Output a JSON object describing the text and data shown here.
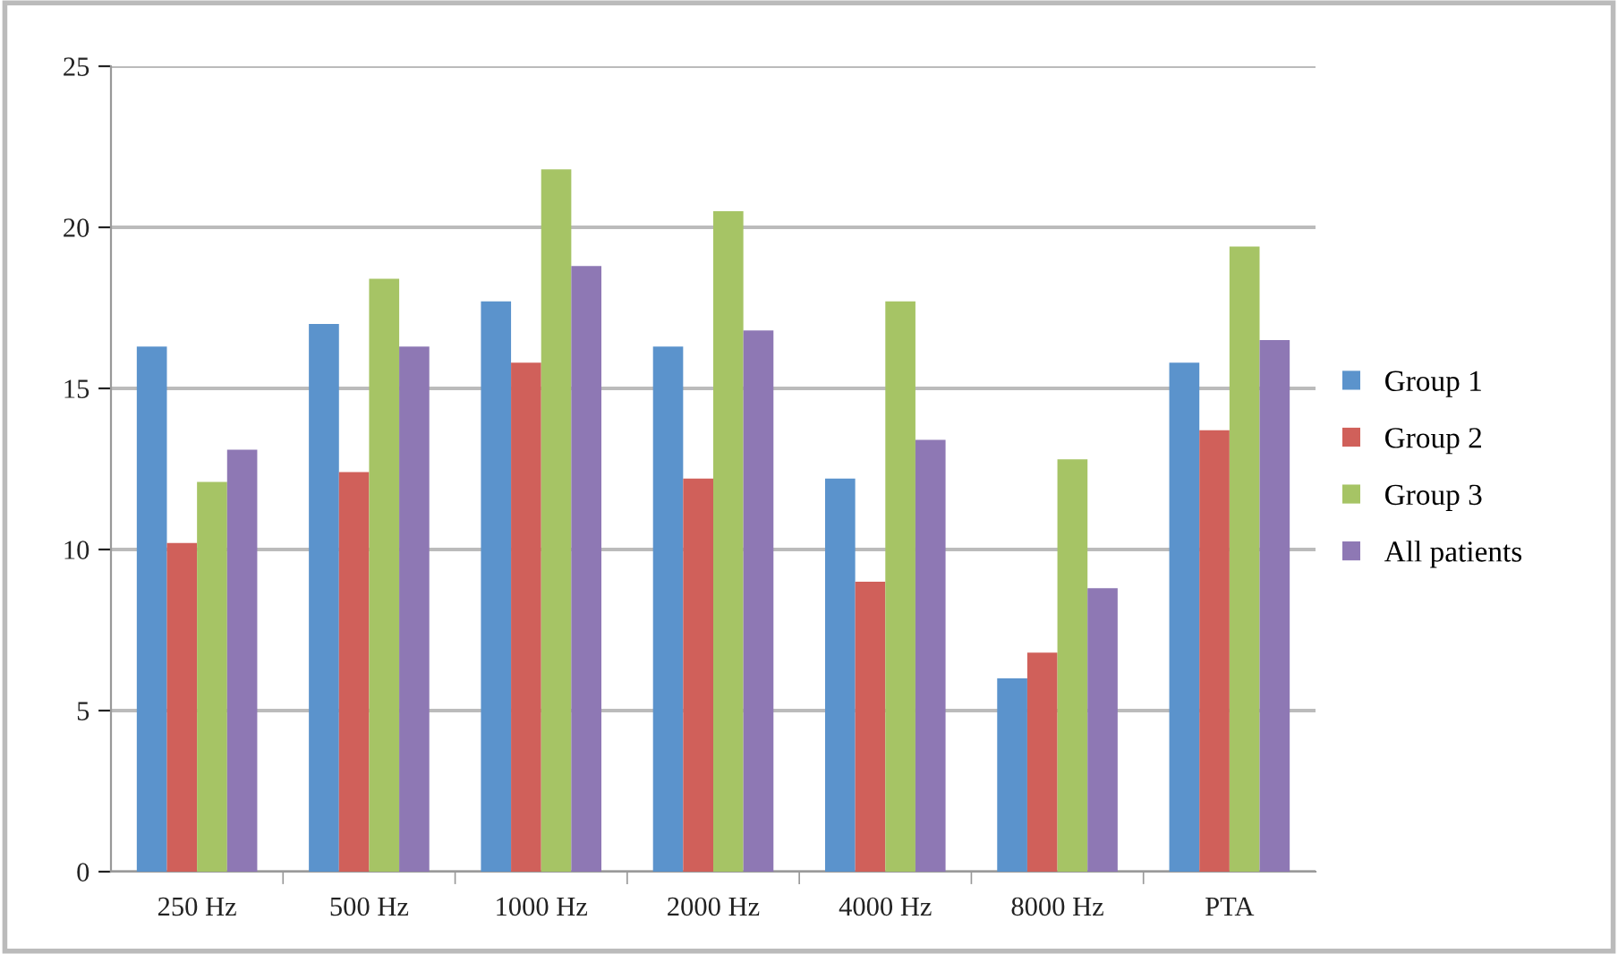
{
  "chart_data": {
    "type": "bar",
    "categories": [
      "250 Hz",
      "500 Hz",
      "1000 Hz",
      "2000 Hz",
      "4000 Hz",
      "8000 Hz",
      "PTA"
    ],
    "series": [
      {
        "name": "Group 1",
        "color": "#5b93cc",
        "values": [
          16.3,
          17.0,
          17.7,
          16.3,
          12.2,
          6.0,
          15.8
        ]
      },
      {
        "name": "Group 2",
        "color": "#d0605a",
        "values": [
          10.2,
          12.4,
          15.8,
          12.2,
          9.0,
          6.8,
          13.7
        ]
      },
      {
        "name": "Group 3",
        "color": "#a6c465",
        "values": [
          12.1,
          18.4,
          21.8,
          20.5,
          17.7,
          12.8,
          19.4
        ]
      },
      {
        "name": "All patients",
        "color": "#8e78b4",
        "values": [
          13.1,
          16.3,
          18.8,
          16.8,
          13.4,
          8.8,
          16.5
        ]
      }
    ],
    "ylim": [
      0,
      25
    ],
    "yticks": [
      0,
      5,
      10,
      15,
      20,
      25
    ],
    "grid": "y",
    "legend": "right"
  }
}
